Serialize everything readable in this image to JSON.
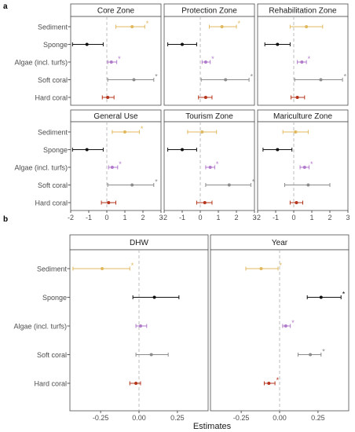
{
  "figure": {
    "panel_a_letter": "a",
    "panel_b_letter": "b",
    "xlabel": "Estimates"
  },
  "colors": {
    "Sediment": "#E1B85E",
    "Sponge": "#111111",
    "Algae (incl. turfs)": "#B27ACC",
    "Soft coral": "#8C8C8C",
    "Hard coral": "#B5341B",
    "zero_line": "#BDBDBD",
    "strip_bg": "#FFFFFF",
    "panel_border": "#4D4D4D"
  },
  "chart_data": [
    {
      "type": "forest",
      "categories": [
        "Sediment",
        "Sponge",
        "Algae (incl. turfs)",
        "Soft coral",
        "Hard coral"
      ],
      "xlim": [
        -2,
        3
      ],
      "xticks": [
        -2,
        -1,
        0,
        1,
        2,
        3
      ],
      "xlabel": "Estimates",
      "panels": [
        {
          "name": "Core Zone",
          "points": [
            {
              "category": "Sediment",
              "est": 1.4,
              "lo": 0.5,
              "hi": 2.1,
              "sig": true
            },
            {
              "category": "Sponge",
              "est": -1.1,
              "lo": -1.9,
              "hi": -0.2,
              "sig": false
            },
            {
              "category": "Algae (incl. turfs)",
              "est": 0.25,
              "lo": 0.05,
              "hi": 0.55,
              "sig": true
            },
            {
              "category": "Soft coral",
              "est": 1.5,
              "lo": 0.05,
              "hi": 2.6,
              "sig": true
            },
            {
              "category": "Hard coral",
              "est": 0.05,
              "lo": -0.25,
              "hi": 0.4,
              "sig": false
            }
          ]
        },
        {
          "name": "Protection Zone",
          "points": [
            {
              "category": "Sediment",
              "est": 1.2,
              "lo": 0.5,
              "hi": 2.0,
              "sig": true
            },
            {
              "category": "Sponge",
              "est": -1.0,
              "lo": -1.8,
              "hi": -0.2,
              "sig": false
            },
            {
              "category": "Algae (incl. turfs)",
              "est": 0.3,
              "lo": 0.1,
              "hi": 0.55,
              "sig": true
            },
            {
              "category": "Soft coral",
              "est": 1.4,
              "lo": 0.05,
              "hi": 2.7,
              "sig": true
            },
            {
              "category": "Hard coral",
              "est": 0.3,
              "lo": -0.1,
              "hi": 0.65,
              "sig": false
            }
          ]
        },
        {
          "name": "Rehabilitation Zone",
          "points": [
            {
              "category": "Sediment",
              "est": 0.7,
              "lo": -0.2,
              "hi": 1.6,
              "sig": false
            },
            {
              "category": "Sponge",
              "est": -0.9,
              "lo": -1.6,
              "hi": -0.2,
              "sig": false
            },
            {
              "category": "Algae (incl. turfs)",
              "est": 0.45,
              "lo": 0.2,
              "hi": 0.7,
              "sig": true
            },
            {
              "category": "Soft coral",
              "est": 1.5,
              "lo": 0.05,
              "hi": 2.7,
              "sig": true
            },
            {
              "category": "Hard coral",
              "est": 0.2,
              "lo": -0.15,
              "hi": 0.6,
              "sig": false
            }
          ]
        },
        {
          "name": "General Use",
          "points": [
            {
              "category": "Sediment",
              "est": 1.0,
              "lo": 0.3,
              "hi": 1.8,
              "sig": true
            },
            {
              "category": "Sponge",
              "est": -1.1,
              "lo": -1.9,
              "hi": -0.2,
              "sig": false
            },
            {
              "category": "Algae (incl. turfs)",
              "est": 0.3,
              "lo": 0.1,
              "hi": 0.6,
              "sig": true
            },
            {
              "category": "Soft coral",
              "est": 1.4,
              "lo": 0.05,
              "hi": 2.6,
              "sig": true
            },
            {
              "category": "Hard coral",
              "est": 0.1,
              "lo": -0.3,
              "hi": 0.5,
              "sig": false
            }
          ]
        },
        {
          "name": "Tourism Zone",
          "points": [
            {
              "category": "Sediment",
              "est": 0.1,
              "lo": -0.7,
              "hi": 0.9,
              "sig": false
            },
            {
              "category": "Sponge",
              "est": -1.0,
              "lo": -1.8,
              "hi": -0.2,
              "sig": false
            },
            {
              "category": "Algae (incl. turfs)",
              "est": 0.55,
              "lo": 0.3,
              "hi": 0.8,
              "sig": true
            },
            {
              "category": "Soft coral",
              "est": 1.6,
              "lo": 0.3,
              "hi": 2.8,
              "sig": true
            },
            {
              "category": "Hard coral",
              "est": 0.25,
              "lo": -0.2,
              "hi": 0.65,
              "sig": false
            }
          ]
        },
        {
          "name": "Mariculture Zone",
          "points": [
            {
              "category": "Sediment",
              "est": 0.1,
              "lo": -0.6,
              "hi": 0.8,
              "sig": false
            },
            {
              "category": "Sponge",
              "est": -0.9,
              "lo": -1.7,
              "hi": -0.1,
              "sig": false
            },
            {
              "category": "Algae (incl. turfs)",
              "est": 0.6,
              "lo": 0.35,
              "hi": 0.85,
              "sig": true
            },
            {
              "category": "Soft coral",
              "est": 0.8,
              "lo": -0.5,
              "hi": 2.0,
              "sig": false
            },
            {
              "category": "Hard coral",
              "est": 0.15,
              "lo": -0.2,
              "hi": 0.5,
              "sig": false
            }
          ]
        }
      ]
    },
    {
      "type": "forest",
      "categories": [
        "Sediment",
        "Sponge",
        "Algae (incl. turfs)",
        "Soft coral",
        "Hard coral"
      ],
      "xlim": [
        -0.45,
        0.45
      ],
      "xticks": [
        -0.25,
        0,
        0.25
      ],
      "xticklabels": [
        "-0.25",
        "0.00",
        "0.25"
      ],
      "xlabel": "Estimates",
      "panels": [
        {
          "name": "DHW",
          "points": [
            {
              "category": "Sediment",
              "est": -0.24,
              "lo": -0.43,
              "hi": -0.06,
              "sig": true
            },
            {
              "category": "Sponge",
              "est": 0.1,
              "lo": -0.04,
              "hi": 0.26,
              "sig": false
            },
            {
              "category": "Algae (incl. turfs)",
              "est": 0.01,
              "lo": -0.02,
              "hi": 0.05,
              "sig": false
            },
            {
              "category": "Soft coral",
              "est": 0.08,
              "lo": -0.02,
              "hi": 0.19,
              "sig": false
            },
            {
              "category": "Hard coral",
              "est": -0.02,
              "lo": -0.06,
              "hi": 0.01,
              "sig": false
            }
          ]
        },
        {
          "name": "Year",
          "points": [
            {
              "category": "Sediment",
              "est": -0.12,
              "lo": -0.22,
              "hi": -0.01,
              "sig": true
            },
            {
              "category": "Sponge",
              "est": 0.27,
              "lo": 0.18,
              "hi": 0.4,
              "sig": true
            },
            {
              "category": "Algae (incl. turfs)",
              "est": 0.04,
              "lo": 0.02,
              "hi": 0.07,
              "sig": true
            },
            {
              "category": "Soft coral",
              "est": 0.2,
              "lo": 0.12,
              "hi": 0.27,
              "sig": true
            },
            {
              "category": "Hard coral",
              "est": -0.07,
              "lo": -0.1,
              "hi": -0.03,
              "sig": true
            }
          ]
        }
      ]
    }
  ]
}
